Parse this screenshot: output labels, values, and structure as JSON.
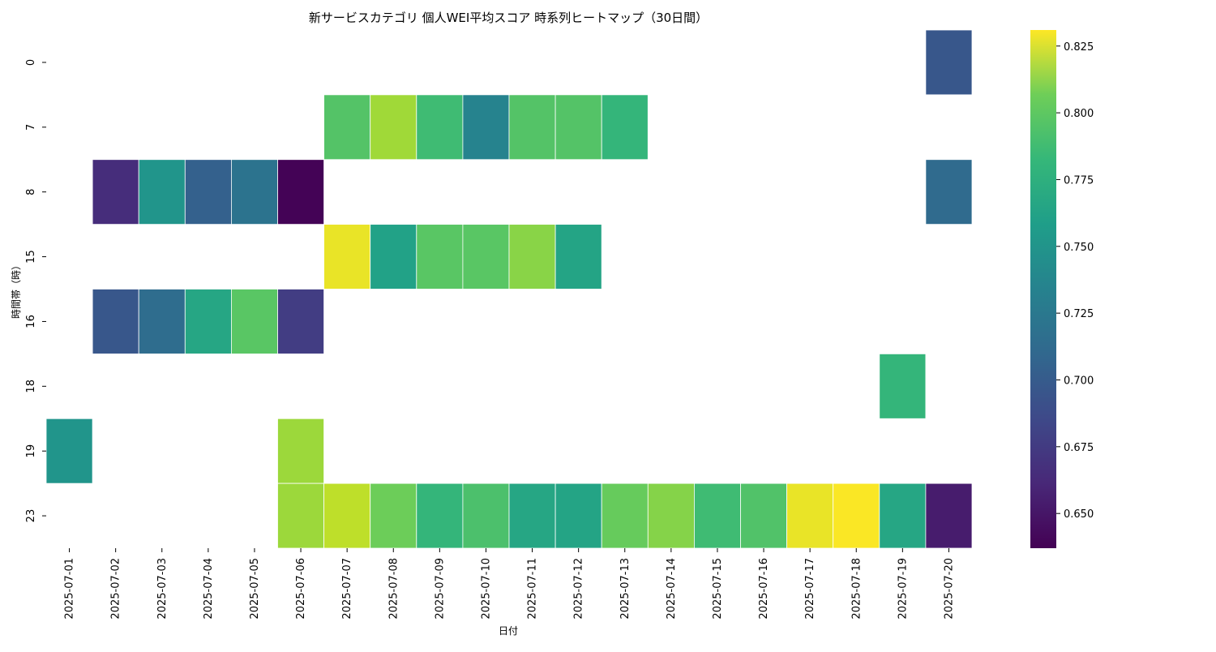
{
  "chart_data": {
    "type": "heatmap",
    "title": "新サービスカテゴリ 個人WEI平均スコア 時系列ヒートマップ（30日間）",
    "xlabel": "日付",
    "ylabel": "時間帯（時）",
    "x_categories": [
      "2025-07-01",
      "2025-07-02",
      "2025-07-03",
      "2025-07-04",
      "2025-07-05",
      "2025-07-06",
      "2025-07-07",
      "2025-07-08",
      "2025-07-09",
      "2025-07-10",
      "2025-07-11",
      "2025-07-12",
      "2025-07-13",
      "2025-07-14",
      "2025-07-15",
      "2025-07-16",
      "2025-07-17",
      "2025-07-18",
      "2025-07-19",
      "2025-07-20"
    ],
    "y_categories": [
      "0",
      "7",
      "8",
      "15",
      "16",
      "18",
      "19",
      "23"
    ],
    "values": [
      [
        null,
        null,
        null,
        null,
        null,
        null,
        null,
        null,
        null,
        null,
        null,
        null,
        null,
        null,
        null,
        null,
        null,
        null,
        null,
        0.69
      ],
      [
        null,
        null,
        null,
        null,
        null,
        null,
        0.778,
        0.803,
        0.77,
        0.724,
        0.778,
        0.778,
        0.765,
        null,
        null,
        null,
        null,
        null,
        null,
        null
      ],
      [
        null,
        0.662,
        0.738,
        0.697,
        0.711,
        0.638,
        null,
        null,
        null,
        null,
        null,
        null,
        null,
        null,
        null,
        null,
        null,
        null,
        null,
        0.704
      ],
      [
        null,
        null,
        null,
        null,
        null,
        null,
        0.825,
        0.748,
        0.78,
        0.78,
        0.796,
        0.75,
        null,
        null,
        null,
        null,
        null,
        null,
        null,
        null
      ],
      [
        null,
        0.69,
        0.706,
        0.752,
        0.78,
        0.672,
        null,
        null,
        null,
        null,
        null,
        null,
        null,
        null,
        null,
        null,
        null,
        null,
        null,
        null
      ],
      [
        null,
        null,
        null,
        null,
        null,
        null,
        null,
        null,
        null,
        null,
        null,
        null,
        null,
        null,
        null,
        null,
        null,
        null,
        0.765,
        null
      ],
      [
        0.738,
        null,
        null,
        null,
        null,
        0.802,
        null,
        null,
        null,
        null,
        null,
        null,
        null,
        null,
        null,
        null,
        null,
        null,
        null,
        null
      ],
      [
        null,
        null,
        null,
        null,
        null,
        0.802,
        0.812,
        0.787,
        0.765,
        0.775,
        0.752,
        0.75,
        0.785,
        0.795,
        0.77,
        0.777,
        0.825,
        0.83,
        0.752,
        0.652
      ]
    ],
    "colorbar": {
      "colormap": "viridis",
      "range": [
        0.637,
        0.831
      ],
      "ticks": [
        "0.650",
        "0.675",
        "0.700",
        "0.725",
        "0.750",
        "0.775",
        "0.800",
        "0.825"
      ]
    },
    "grid": false,
    "legend": "right"
  }
}
